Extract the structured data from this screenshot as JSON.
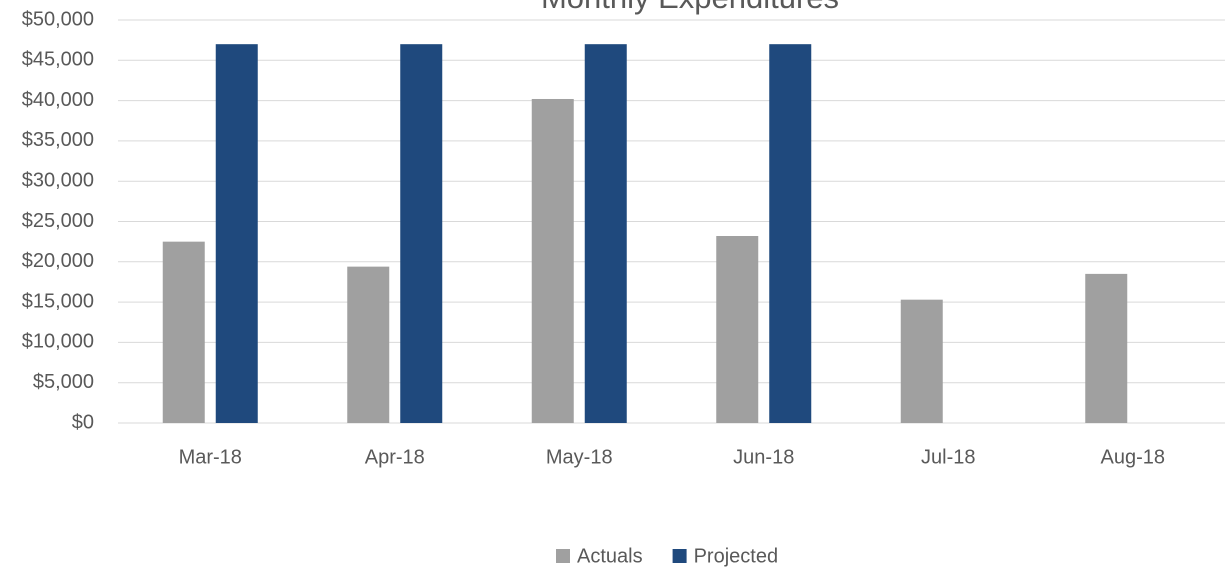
{
  "chart_data": {
    "type": "bar",
    "title": "Monthly Expenditures",
    "categories": [
      "Mar-18",
      "Apr-18",
      "May-18",
      "Jun-18",
      "Jul-18",
      "Aug-18"
    ],
    "series": [
      {
        "name": "Actuals",
        "color": "#a0a0a0",
        "values": [
          22500,
          19400,
          40200,
          23200,
          15300,
          18500
        ]
      },
      {
        "name": "Projected",
        "color": "#1f497d",
        "values": [
          47000,
          47000,
          47000,
          47000,
          null,
          null
        ]
      }
    ],
    "ylim": [
      0,
      50000
    ],
    "yticks": [
      {
        "value": 0,
        "label": "$0"
      },
      {
        "value": 5000,
        "label": "$5,000"
      },
      {
        "value": 10000,
        "label": "$10,000"
      },
      {
        "value": 15000,
        "label": "$15,000"
      },
      {
        "value": 20000,
        "label": "$20,000"
      },
      {
        "value": 25000,
        "label": "$25,000"
      },
      {
        "value": 30000,
        "label": "$30,000"
      },
      {
        "value": 35000,
        "label": "$35,000"
      },
      {
        "value": 40000,
        "label": "$40,000"
      },
      {
        "value": 45000,
        "label": "$45,000"
      },
      {
        "value": 50000,
        "label": "$50,000"
      }
    ],
    "grid": true,
    "legend": "bottom"
  }
}
